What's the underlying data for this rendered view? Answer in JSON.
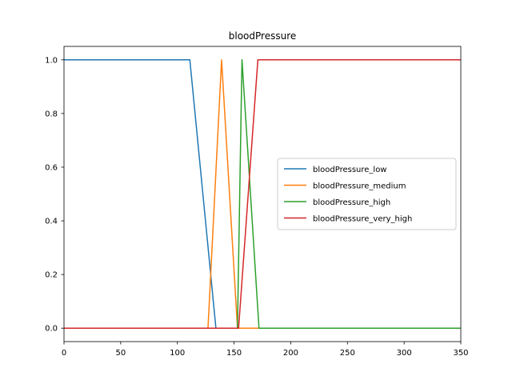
{
  "chart_data": {
    "type": "line",
    "title": "bloodPressure",
    "xlabel": "",
    "ylabel": "",
    "xlim": [
      0,
      350
    ],
    "ylim": [
      -0.05,
      1.05
    ],
    "xticks": [
      0,
      50,
      100,
      150,
      200,
      250,
      300,
      350
    ],
    "yticks": [
      0.0,
      0.2,
      0.4,
      0.6,
      0.8,
      1.0
    ],
    "xtick_labels": [
      "0",
      "50",
      "100",
      "150",
      "200",
      "250",
      "300",
      "350"
    ],
    "ytick_labels": [
      "0.0",
      "0.2",
      "0.4",
      "0.6",
      "0.8",
      "1.0"
    ],
    "grid": false,
    "legend_position": "center-right",
    "series": [
      {
        "name": "bloodPressure_low",
        "color": "#1f77b4",
        "x": [
          0,
          111,
          134,
          350
        ],
        "y": [
          1,
          1,
          0,
          0
        ]
      },
      {
        "name": "bloodPressure_medium",
        "color": "#ff7f0e",
        "x": [
          0,
          127,
          139,
          153,
          350
        ],
        "y": [
          0,
          0,
          1,
          0,
          0
        ]
      },
      {
        "name": "bloodPressure_high",
        "color": "#2ca02c",
        "x": [
          0,
          153,
          157,
          172,
          350
        ],
        "y": [
          0,
          0,
          1,
          0,
          0
        ]
      },
      {
        "name": "bloodPressure_very_high",
        "color": "#d62728",
        "x": [
          0,
          154,
          171,
          350
        ],
        "y": [
          0,
          0,
          1,
          1
        ]
      }
    ]
  }
}
